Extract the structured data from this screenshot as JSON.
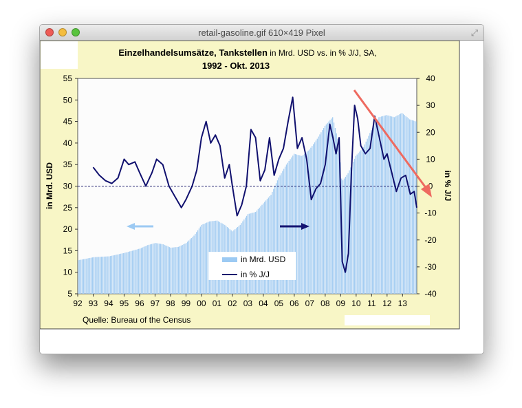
{
  "window": {
    "title": "retail-gasoline.gif 610×419 Pixel",
    "resize_icon": "fullscreen-arrows-icon"
  },
  "chart_data": {
    "type": "bar+line",
    "title": "Einzelhandelsumsätze, Tankstellen",
    "title_suffix": " in Mrd. USD vs. in % J/J, SA,",
    "subtitle": "1992 - Okt. 2013",
    "ylabel_left": "in Mrd. USD",
    "ylabel_right": "in % J/J",
    "source": "Quelle: Bureau of the Census",
    "ylim_left": [
      5,
      55
    ],
    "ylim_right": [
      -40,
      40
    ],
    "yticks_left": [
      5,
      10,
      15,
      20,
      25,
      30,
      35,
      40,
      45,
      50,
      55
    ],
    "yticks_right": [
      -40,
      -30,
      -20,
      -10,
      0,
      10,
      20,
      30,
      40
    ],
    "xticks": [
      "92",
      "93",
      "94",
      "95",
      "96",
      "97",
      "98",
      "99",
      "00",
      "01",
      "02",
      "03",
      "04",
      "05",
      "06",
      "07",
      "08",
      "09",
      "10",
      "11",
      "12",
      "13"
    ],
    "x_start_year": 1992,
    "x_end_year": 2013.92,
    "legend": {
      "position": "bottom-center",
      "entries": [
        "in Mrd. USD",
        "in % J/J"
      ]
    },
    "colors": {
      "bar": "#a5cdf2",
      "line": "#10106e",
      "background": "#fcfcfc",
      "frame": "#f8f6c6",
      "arrow_light": "#9ccaf3",
      "arrow_dark": "#141472",
      "annotation_arrow": "#ee6a60"
    },
    "series": [
      {
        "name": "in Mrd. USD",
        "axis": "left",
        "x": [
          1992.0,
          1993.0,
          1994.0,
          1995.0,
          1995.5,
          1996.0,
          1996.5,
          1997.0,
          1997.5,
          1998.0,
          1998.5,
          1999.0,
          1999.5,
          2000.0,
          2000.5,
          2001.0,
          2001.5,
          2002.0,
          2002.5,
          2003.0,
          2003.5,
          2004.0,
          2004.5,
          2005.0,
          2005.5,
          2006.0,
          2006.5,
          2007.0,
          2007.5,
          2008.0,
          2008.5,
          2008.9,
          2009.1,
          2009.5,
          2010.0,
          2010.5,
          2011.0,
          2011.5,
          2012.0,
          2012.5,
          2013.0,
          2013.5,
          2013.92
        ],
        "values": [
          12.8,
          13.5,
          13.7,
          14.5,
          15.0,
          15.5,
          16.3,
          16.8,
          16.5,
          15.7,
          15.9,
          16.8,
          18.5,
          21.0,
          21.8,
          22.0,
          21.0,
          19.5,
          21.0,
          23.5,
          24.0,
          26.0,
          28.0,
          32.0,
          35.0,
          37.5,
          37.0,
          38.5,
          41.0,
          44.0,
          46.0,
          40.0,
          31.0,
          33.0,
          37.0,
          39.0,
          43.0,
          46.0,
          46.5,
          46.0,
          47.0,
          45.5,
          45.0
        ]
      },
      {
        "name": "in % J/J",
        "axis": "right",
        "x": [
          1993.0,
          1993.4,
          1993.8,
          1994.2,
          1994.6,
          1995.0,
          1995.3,
          1995.7,
          1996.0,
          1996.4,
          1996.8,
          1997.1,
          1997.5,
          1997.9,
          1998.3,
          1998.7,
          1999.0,
          1999.4,
          1999.7,
          2000.0,
          2000.3,
          2000.6,
          2000.9,
          2001.2,
          2001.5,
          2001.8,
          2002.0,
          2002.3,
          2002.6,
          2002.9,
          2003.2,
          2003.5,
          2003.8,
          2004.1,
          2004.4,
          2004.7,
          2005.0,
          2005.3,
          2005.6,
          2005.9,
          2006.2,
          2006.5,
          2006.8,
          2007.1,
          2007.4,
          2007.7,
          2008.0,
          2008.3,
          2008.5,
          2008.7,
          2008.9,
          2009.1,
          2009.3,
          2009.5,
          2009.7,
          2009.9,
          2010.1,
          2010.3,
          2010.6,
          2010.9,
          2011.2,
          2011.5,
          2011.8,
          2012.0,
          2012.3,
          2012.6,
          2012.9,
          2013.2,
          2013.5,
          2013.75,
          2013.92
        ],
        "values": [
          7,
          4,
          2,
          1,
          3,
          10,
          8,
          9,
          5,
          0,
          5,
          10,
          8,
          0,
          -4,
          -8,
          -5,
          0,
          6,
          18,
          24,
          16,
          19,
          15,
          3,
          8,
          0,
          -11,
          -7,
          0,
          21,
          18,
          2,
          6,
          18,
          4,
          10,
          14,
          24,
          33,
          14,
          18,
          10,
          -5,
          -1,
          1,
          8,
          23,
          18,
          12,
          18,
          -28,
          -32,
          -25,
          6,
          30,
          25,
          15,
          12,
          14,
          26,
          18,
          10,
          12,
          5,
          -2,
          3,
          4,
          -3,
          -2,
          -8
        ]
      }
    ]
  }
}
